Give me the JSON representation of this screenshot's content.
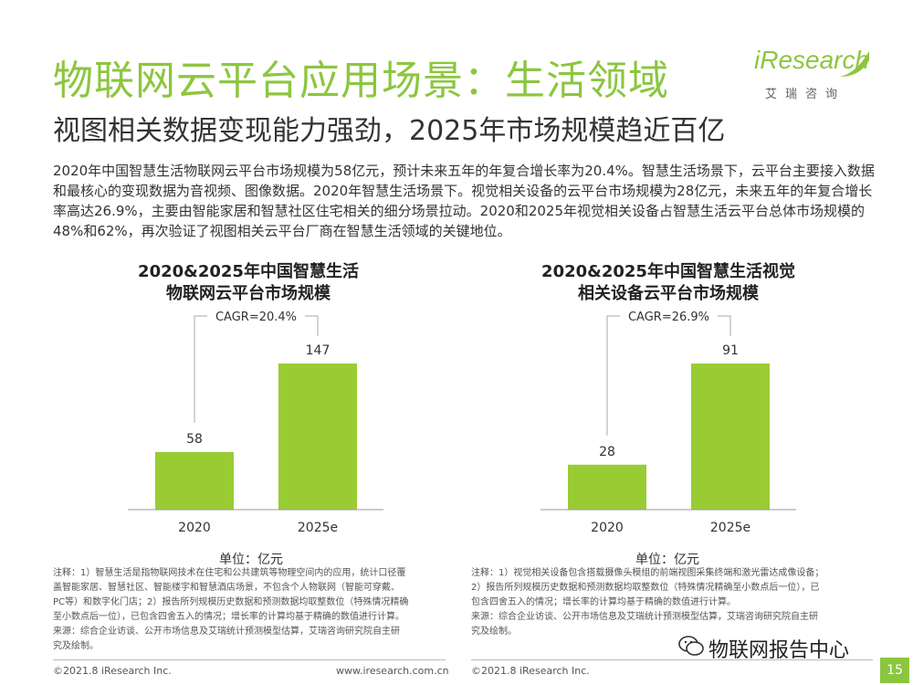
{
  "header": {
    "title": "物联网云平台应用场景：生活领域",
    "subtitle": "视图相关数据变现能力强劲，2025年市场规模趋近百亿"
  },
  "logo": {
    "brand": "iResearch",
    "sub": "艾瑞咨询",
    "color": "#8cc63f"
  },
  "intro": "2020年中国智慧生活物联网云平台市场规模为58亿元，预计未来五年的年复合增长率为20.4%。智慧生活场景下，云平台主要接入数据和最核心的变现数据为音视频、图像数据。2020年智慧生活场景下。视觉相关设备的云平台市场规模为28亿元，未来五年的年复合增长率高达26.9%，主要由智能家居和智慧社区住宅相关的细分场景拉动。2020和2025年视觉相关设备占智慧生活云平台总体市场规模的48%和62%，再次验证了视图相关云平台厂商在智慧生活领域的关键地位。",
  "chart_data": [
    {
      "type": "bar",
      "title_lines": [
        "2020&2025年中国智慧生活",
        "物联网云平台市场规模"
      ],
      "categories": [
        "2020",
        "2025e"
      ],
      "values": [
        58,
        147
      ],
      "annotation": "CAGR=20.4%",
      "unit": "单位：亿元",
      "bar_color": "#99cc33"
    },
    {
      "type": "bar",
      "title_lines": [
        "2020&2025年中国智慧生活视觉",
        "相关设备云平台市场规模"
      ],
      "categories": [
        "2020",
        "2025e"
      ],
      "values": [
        28,
        91
      ],
      "annotation": "CAGR=26.9%",
      "unit": "单位：亿元",
      "bar_color": "#99cc33"
    }
  ],
  "notes": {
    "left": [
      "注释：1）智慧生活是指物联网技术在住宅和公共建筑等物理空间内的应用，统计口径覆",
      "盖智能家居、智慧社区、智能楼宇和智慧酒店场景，不包含个人物联网（智能可穿戴、",
      "PC等）和数字化门店；2）报告所列规模历史数据和预测数据均取整数位（特殊情况精确",
      "至小数点后一位），已包含四舍五入的情况；增长率的计算均基于精确的数值进行计算。",
      "来源：综合企业访谈、公开市场信息及艾瑞统计预测模型估算，艾瑞咨询研究院自主研",
      "究及绘制。"
    ],
    "right": [
      "注释：1）视觉相关设备包含搭载摄像头模组的前端视图采集终端和激光雷达成像设备；",
      "2）报告所列规模历史数据和预测数据均取整数位（特殊情况精确至小数点后一位），已",
      "包含四舍五入的情况；增长率的计算均基于精确的数值进行计算。",
      "来源：综合企业访谈、公开市场信息及艾瑞统计预测模型估算，艾瑞咨询研究院自主研",
      "究及绘制。"
    ]
  },
  "footer": {
    "left": "©2021.8 iResearch Inc.",
    "center": "www.iresearch.com.cn",
    "right": "©2021.8 iResearch Inc.",
    "page": "15"
  },
  "watermark": "物联网报告中心"
}
